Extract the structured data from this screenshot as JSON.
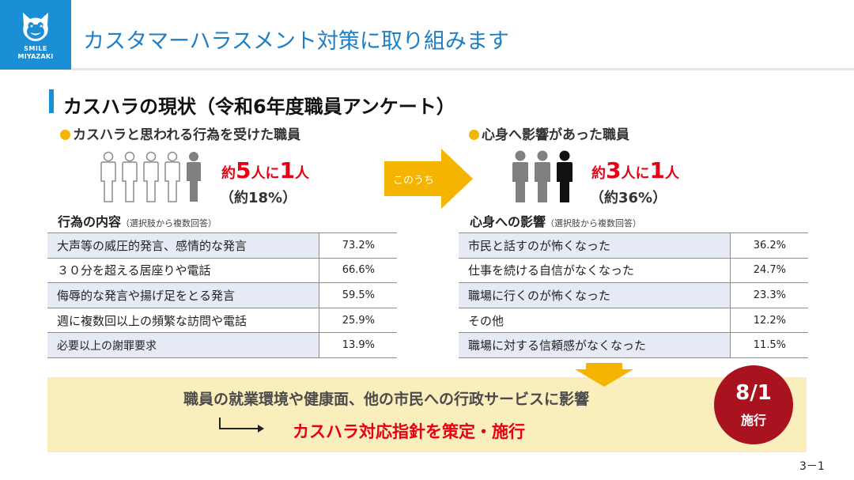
{
  "logo": {
    "icon": "mascot-cat-icon",
    "line1": "SMILE",
    "line2": "MIYAZAKI",
    "color": "#1b8fd6"
  },
  "header": {
    "title": "カスタマーハラスメント対策に取り組みます"
  },
  "section": {
    "title": "カスハラの現状（令和6年度職員アンケート）"
  },
  "left": {
    "heading": "カスハラと思われる行為を受けた職員",
    "people": {
      "total": 5,
      "highlighted": 1
    },
    "ratio": {
      "pre": "約",
      "num": "5",
      "mid": "人に",
      "one": "1",
      "post": "人"
    },
    "percent": "（約18%）",
    "table_title": "行為の内容",
    "table_note": "（選択肢から複数回答）",
    "rows": [
      {
        "label": "大声等の威圧的発言、感情的な発言",
        "value": "73.2%"
      },
      {
        "label": "３０分を超える居座りや電話",
        "value": "66.6%"
      },
      {
        "label": "侮辱的な発言や揚げ足をとる発言",
        "value": "59.5%"
      },
      {
        "label": "週に複数回以上の頻繁な訪問や電話",
        "value": "25.9%"
      },
      {
        "label": "必要以上の謝罪要求",
        "value": "13.9%"
      }
    ]
  },
  "arrow": {
    "label": "このうち"
  },
  "right": {
    "heading": "心身へ影響があった職員",
    "people": {
      "total": 3,
      "highlighted": 1
    },
    "ratio": {
      "pre": "約",
      "num": "3",
      "mid": "人に",
      "one": "1",
      "post": "人"
    },
    "percent": "（約36%）",
    "table_title": "心身への影響",
    "table_note": "（選択肢から複数回答）",
    "rows": [
      {
        "label": "市民と話すのが怖くなった",
        "value": "36.2%"
      },
      {
        "label": "仕事を続ける自信がなくなった",
        "value": "24.7%"
      },
      {
        "label": "職場に行くのが怖くなった",
        "value": "23.3%"
      },
      {
        "label": "その他",
        "value": "12.2%"
      },
      {
        "label": "職場に対する信頼感がなくなった",
        "value": "11.5%"
      }
    ]
  },
  "conclusion": {
    "impact": "職員の就業環境や健康面、他の市民への行政サービスに影響",
    "policy": "カスハラ対応指針を策定・施行"
  },
  "badge": {
    "date": "8/1",
    "label": "施行"
  },
  "page_number": "3－1",
  "colors": {
    "accent": "#1b8fd6",
    "red": "#e60012",
    "badge": "#a8131f",
    "arrow": "#f5b400",
    "highlight_box": "#fbeebd",
    "row_shade": "#e6eaf5"
  }
}
